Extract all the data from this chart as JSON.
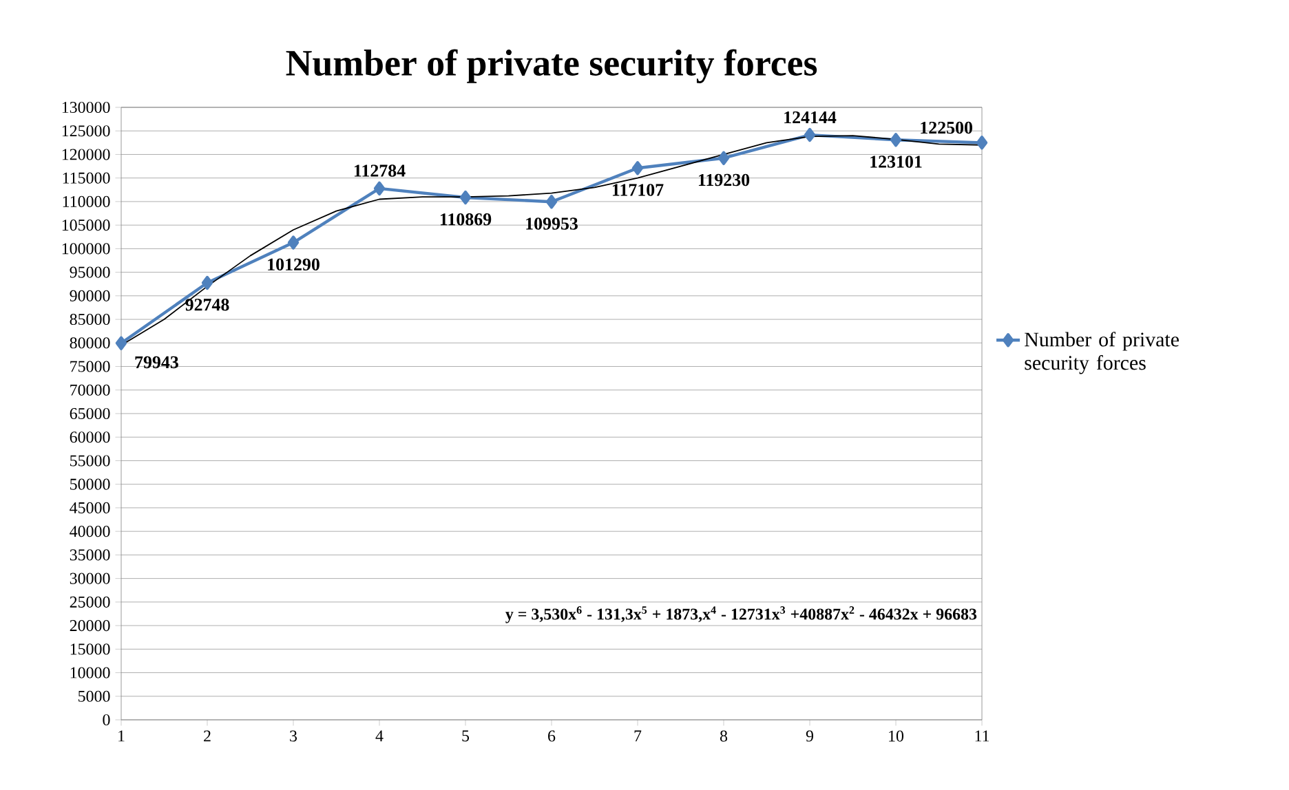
{
  "chart_data": {
    "type": "line",
    "title": "Number of private security forces",
    "x": [
      1,
      2,
      3,
      4,
      5,
      6,
      7,
      8,
      9,
      10,
      11
    ],
    "xlim": [
      1,
      11
    ],
    "xticks": [
      1,
      2,
      3,
      4,
      5,
      6,
      7,
      8,
      9,
      10,
      11
    ],
    "ylim": [
      0,
      130000
    ],
    "yticks": [
      0,
      5000,
      10000,
      15000,
      20000,
      25000,
      30000,
      35000,
      40000,
      45000,
      50000,
      55000,
      60000,
      65000,
      70000,
      75000,
      80000,
      85000,
      90000,
      95000,
      100000,
      105000,
      110000,
      115000,
      120000,
      125000,
      130000
    ],
    "grid": "y",
    "legend": "right",
    "marker": "diamond",
    "annotations": [
      "y = 3,530x$^{6}$ - 131,3x$^{5}$ + 1873,x$^{4}$ - 12731x$^{3}$ +40887x$^{2}$ - 46432x + 96683"
    ],
    "series": [
      {
        "name": "Number of private security forces",
        "color": "#4f81bd",
        "values": [
          79943,
          92748,
          101290,
          112784,
          110869,
          109953,
          117107,
          119230,
          124144,
          123101,
          122500
        ],
        "value_labels": [
          "79943",
          "92748",
          "101290",
          "112784",
          "110869",
          "109953",
          "117107",
          "119230",
          "124144",
          "123101",
          "122500"
        ]
      },
      {
        "color": "#000000",
        "marker": "none",
        "x": [
          1,
          1.5,
          2,
          2.5,
          3,
          3.5,
          4,
          4.5,
          5,
          5.5,
          6,
          6.5,
          7,
          7.5,
          8,
          8.5,
          9,
          9.5,
          10,
          10.5,
          11
        ],
        "values": [
          79500,
          85000,
          92000,
          98500,
          104000,
          108000,
          110500,
          111000,
          111000,
          111200,
          111800,
          113000,
          115000,
          117500,
          120000,
          122500,
          123800,
          124000,
          123200,
          122200,
          122000
        ]
      }
    ]
  }
}
